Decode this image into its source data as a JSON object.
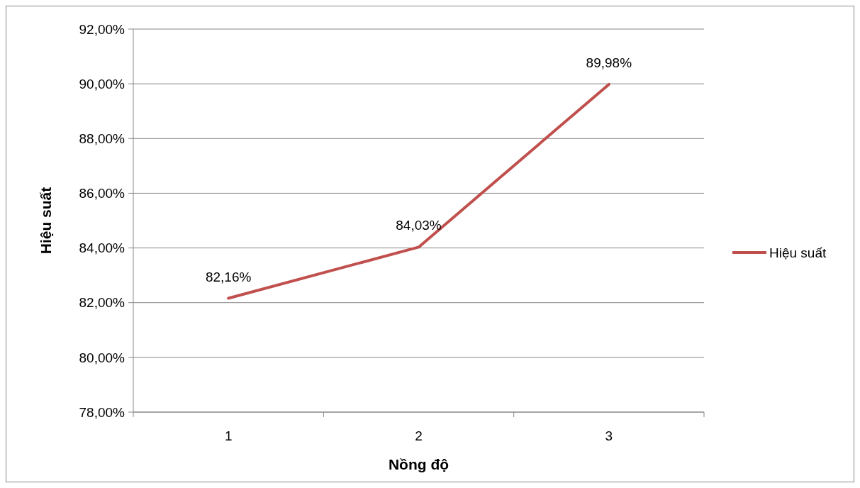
{
  "chart_data": {
    "type": "line",
    "xlabel": "Nồng độ",
    "ylabel": "Hiệu suất",
    "categories": [
      "1",
      "2",
      "3"
    ],
    "series": [
      {
        "name": "Hiệu suất",
        "color": "#c0504d",
        "values": [
          82.16,
          84.03,
          89.98
        ],
        "value_labels": [
          "82,16%",
          "84,03%",
          "89,98%"
        ]
      }
    ],
    "ylim": [
      78,
      92
    ],
    "yticks": [
      {
        "value": 78,
        "label": "78,00%"
      },
      {
        "value": 80,
        "label": "80,00%"
      },
      {
        "value": 82,
        "label": "82,00%"
      },
      {
        "value": 84,
        "label": "84,00%"
      },
      {
        "value": 86,
        "label": "86,00%"
      },
      {
        "value": 88,
        "label": "88,00%"
      },
      {
        "value": 90,
        "label": "90,00%"
      },
      {
        "value": 92,
        "label": "92,00%"
      }
    ],
    "grid": "y",
    "legend": "right",
    "marker": "none",
    "line_style": "solid"
  }
}
